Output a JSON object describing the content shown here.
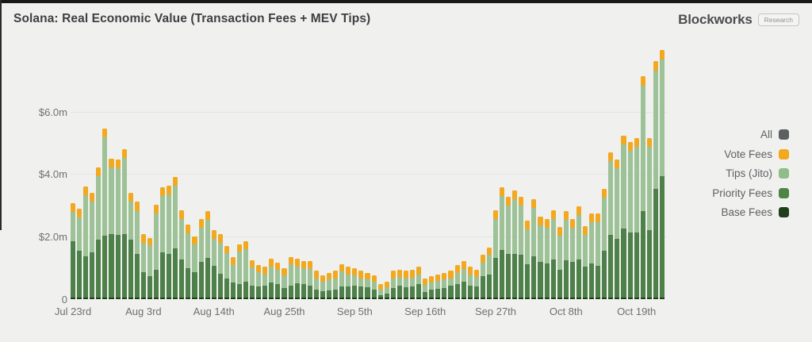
{
  "page": {
    "background": "#f0f1ef"
  },
  "header": {
    "title": "Solana: Real Economic Value (Transaction Fees + MEV Tips)",
    "brand_name": "Blockworks",
    "brand_badge": "Research"
  },
  "legend": {
    "items": [
      {
        "label": "All",
        "color": "#5C6063"
      },
      {
        "label": "Vote Fees",
        "color": "#F2A81F"
      },
      {
        "label": "Tips (Jito)",
        "color": "#8FBC88"
      },
      {
        "label": "Priority Fees",
        "color": "#4D8544"
      },
      {
        "label": "Base Fees",
        "color": "#1F3E1B"
      }
    ]
  },
  "chart_data": {
    "type": "bar",
    "stacked": true,
    "title": "Solana: Real Economic Value (Transaction Fees + MEV Tips)",
    "unit": "$m USD",
    "num_points": 93,
    "date_range": "Jul 23rd - Oct 23rd",
    "ylim": [
      0,
      8.1
    ],
    "grid": "horizontal",
    "legend_position": "right",
    "y_ticks": [
      {
        "value": 0,
        "label": "0"
      },
      {
        "value": 2,
        "label": "$2.0m"
      },
      {
        "value": 4,
        "label": "$4.0m"
      },
      {
        "value": 6,
        "label": "$6.0m"
      }
    ],
    "x_ticks": [
      {
        "index": 0,
        "label": "Jul 23rd"
      },
      {
        "index": 11,
        "label": "Aug 3rd"
      },
      {
        "index": 22,
        "label": "Aug 14th"
      },
      {
        "index": 33,
        "label": "Aug 25th"
      },
      {
        "index": 44,
        "label": "Sep 5th"
      },
      {
        "index": 55,
        "label": "Sep 16th"
      },
      {
        "index": 66,
        "label": "Sep 27th"
      },
      {
        "index": 77,
        "label": "Oct 8th"
      },
      {
        "index": 88,
        "label": "Oct 19th"
      }
    ],
    "series": [
      {
        "name": "Base Fees",
        "color": "#1F3E1B",
        "values": [
          0.06,
          0.06,
          0.06,
          0.06,
          0.06,
          0.06,
          0.06,
          0.06,
          0.06,
          0.06,
          0.06,
          0.06,
          0.06,
          0.06,
          0.06,
          0.06,
          0.06,
          0.06,
          0.06,
          0.06,
          0.06,
          0.06,
          0.06,
          0.06,
          0.06,
          0.06,
          0.06,
          0.06,
          0.06,
          0.06,
          0.06,
          0.06,
          0.06,
          0.06,
          0.06,
          0.06,
          0.06,
          0.06,
          0.06,
          0.06,
          0.06,
          0.06,
          0.06,
          0.06,
          0.06,
          0.06,
          0.06,
          0.06,
          0.06,
          0.06,
          0.06,
          0.06,
          0.06,
          0.06,
          0.06,
          0.06,
          0.06,
          0.06,
          0.06,
          0.06,
          0.06,
          0.06,
          0.06,
          0.06,
          0.06,
          0.06,
          0.06,
          0.06,
          0.06,
          0.06,
          0.06,
          0.06,
          0.06,
          0.06,
          0.06,
          0.06,
          0.06,
          0.06,
          0.06,
          0.06,
          0.06,
          0.06,
          0.06,
          0.06,
          0.06,
          0.06,
          0.06,
          0.06,
          0.06,
          0.06,
          0.06,
          0.06,
          0.06
        ]
      },
      {
        "name": "Priority Fees",
        "color": "#4E8049",
        "values": [
          1.8,
          1.49,
          1.32,
          1.44,
          1.84,
          1.96,
          2.02,
          1.99,
          2.02,
          1.84,
          1.38,
          0.8,
          0.67,
          0.88,
          1.43,
          1.39,
          1.56,
          1.22,
          0.92,
          0.8,
          1.14,
          1.26,
          1.01,
          0.75,
          0.61,
          0.47,
          0.43,
          0.51,
          0.38,
          0.34,
          0.36,
          0.47,
          0.43,
          0.3,
          0.38,
          0.45,
          0.43,
          0.38,
          0.25,
          0.2,
          0.22,
          0.25,
          0.34,
          0.34,
          0.38,
          0.34,
          0.31,
          0.25,
          0.08,
          0.13,
          0.3,
          0.38,
          0.32,
          0.34,
          0.43,
          0.17,
          0.24,
          0.27,
          0.3,
          0.36,
          0.43,
          0.51,
          0.38,
          0.34,
          0.68,
          0.74,
          1.26,
          1.52,
          1.39,
          1.39,
          1.35,
          1.05,
          1.31,
          1.14,
          1.09,
          1.22,
          0.88,
          1.18,
          1.14,
          1.22,
          0.97,
          1.09,
          1.01,
          1.48,
          1.99,
          1.88,
          2.2,
          2.07,
          2.07,
          2.75,
          2.14,
          3.47,
          3.87
        ]
      },
      {
        "name": "Tips (Jito)",
        "color": "#9EC297",
        "values": [
          0.93,
          1.06,
          1.94,
          1.61,
          2.03,
          3.17,
          2.13,
          2.13,
          2.44,
          1.21,
          1.39,
          0.95,
          0.99,
          1.8,
          1.8,
          1.89,
          2.01,
          1.29,
          1.13,
          0.9,
          1.08,
          1.21,
          0.87,
          1.0,
          0.79,
          0.57,
          1.03,
          1.04,
          0.57,
          0.46,
          0.38,
          0.52,
          0.44,
          0.4,
          0.67,
          0.54,
          0.5,
          0.53,
          0.36,
          0.3,
          0.35,
          0.36,
          0.48,
          0.4,
          0.32,
          0.27,
          0.27,
          0.25,
          0.16,
          0.2,
          0.31,
          0.27,
          0.29,
          0.29,
          0.31,
          0.23,
          0.24,
          0.25,
          0.27,
          0.25,
          0.35,
          0.4,
          0.36,
          0.31,
          0.44,
          0.62,
          1.25,
          1.71,
          1.55,
          1.76,
          1.59,
          1.12,
          1.54,
          1.16,
          1.13,
          1.29,
          1.08,
          1.29,
          1.08,
          1.42,
          1.03,
          1.3,
          1.39,
          1.71,
          2.36,
          2.25,
          2.69,
          2.61,
          2.74,
          4.03,
          2.68,
          3.78,
          3.74
        ]
      },
      {
        "name": "Vote Fees",
        "color": "#F2A81F",
        "values": [
          0.28,
          0.28,
          0.28,
          0.28,
          0.28,
          0.28,
          0.28,
          0.28,
          0.28,
          0.28,
          0.28,
          0.28,
          0.24,
          0.28,
          0.28,
          0.28,
          0.28,
          0.28,
          0.28,
          0.24,
          0.28,
          0.28,
          0.28,
          0.28,
          0.24,
          0.24,
          0.24,
          0.24,
          0.24,
          0.24,
          0.24,
          0.24,
          0.24,
          0.24,
          0.24,
          0.24,
          0.24,
          0.24,
          0.24,
          0.2,
          0.2,
          0.24,
          0.24,
          0.24,
          0.24,
          0.24,
          0.2,
          0.2,
          0.18,
          0.18,
          0.24,
          0.24,
          0.24,
          0.24,
          0.24,
          0.2,
          0.2,
          0.2,
          0.2,
          0.24,
          0.24,
          0.24,
          0.24,
          0.24,
          0.24,
          0.24,
          0.28,
          0.28,
          0.28,
          0.28,
          0.28,
          0.28,
          0.28,
          0.28,
          0.28,
          0.28,
          0.28,
          0.28,
          0.28,
          0.28,
          0.28,
          0.28,
          0.28,
          0.28,
          0.28,
          0.28,
          0.28,
          0.28,
          0.28,
          0.3,
          0.28,
          0.3,
          0.3
        ]
      }
    ]
  }
}
